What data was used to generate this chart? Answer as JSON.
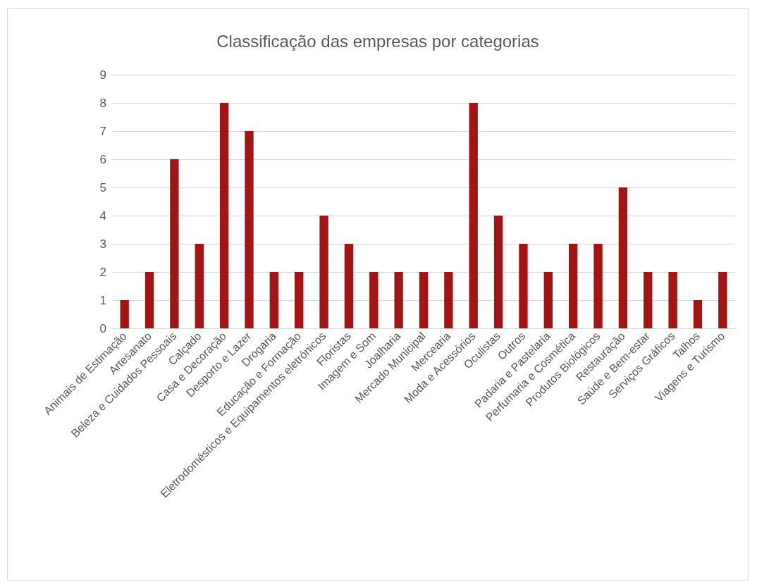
{
  "chart_data": {
    "type": "bar",
    "title": "Classificação das empresas por categorias",
    "categories": [
      "Animais de Estimação",
      "Artesanato",
      "Beleza e Cuidados Pessoais",
      "Calçado",
      "Casa e Decoração",
      "Desporto e Lazer",
      "Drogaria",
      "Educação e Formação",
      "Eletrodomésticos e Equipamentos eletrónicos",
      "Floristas",
      "Imagem e Som",
      "Joalharia",
      "Mercado Municipal",
      "Mercearia",
      "Moda e Acessórios",
      "Oculistas",
      "Outros",
      "Padaria e Pastelaria",
      "Perfumaria e Cosmética",
      "Produtos Biológicos",
      "Restauração",
      "Saúde e Bem-estar",
      "Serviços Gráficos",
      "Talhos",
      "Viagens e Turismo"
    ],
    "values": [
      1,
      2,
      6,
      3,
      8,
      7,
      2,
      2,
      4,
      3,
      2,
      2,
      2,
      2,
      8,
      4,
      3,
      2,
      3,
      3,
      5,
      2,
      2,
      1,
      2
    ],
    "color": "#a31515",
    "ylim": [
      0,
      9
    ],
    "yticks": [
      0,
      1,
      2,
      3,
      4,
      5,
      6,
      7,
      8,
      9
    ],
    "grid": "y"
  }
}
